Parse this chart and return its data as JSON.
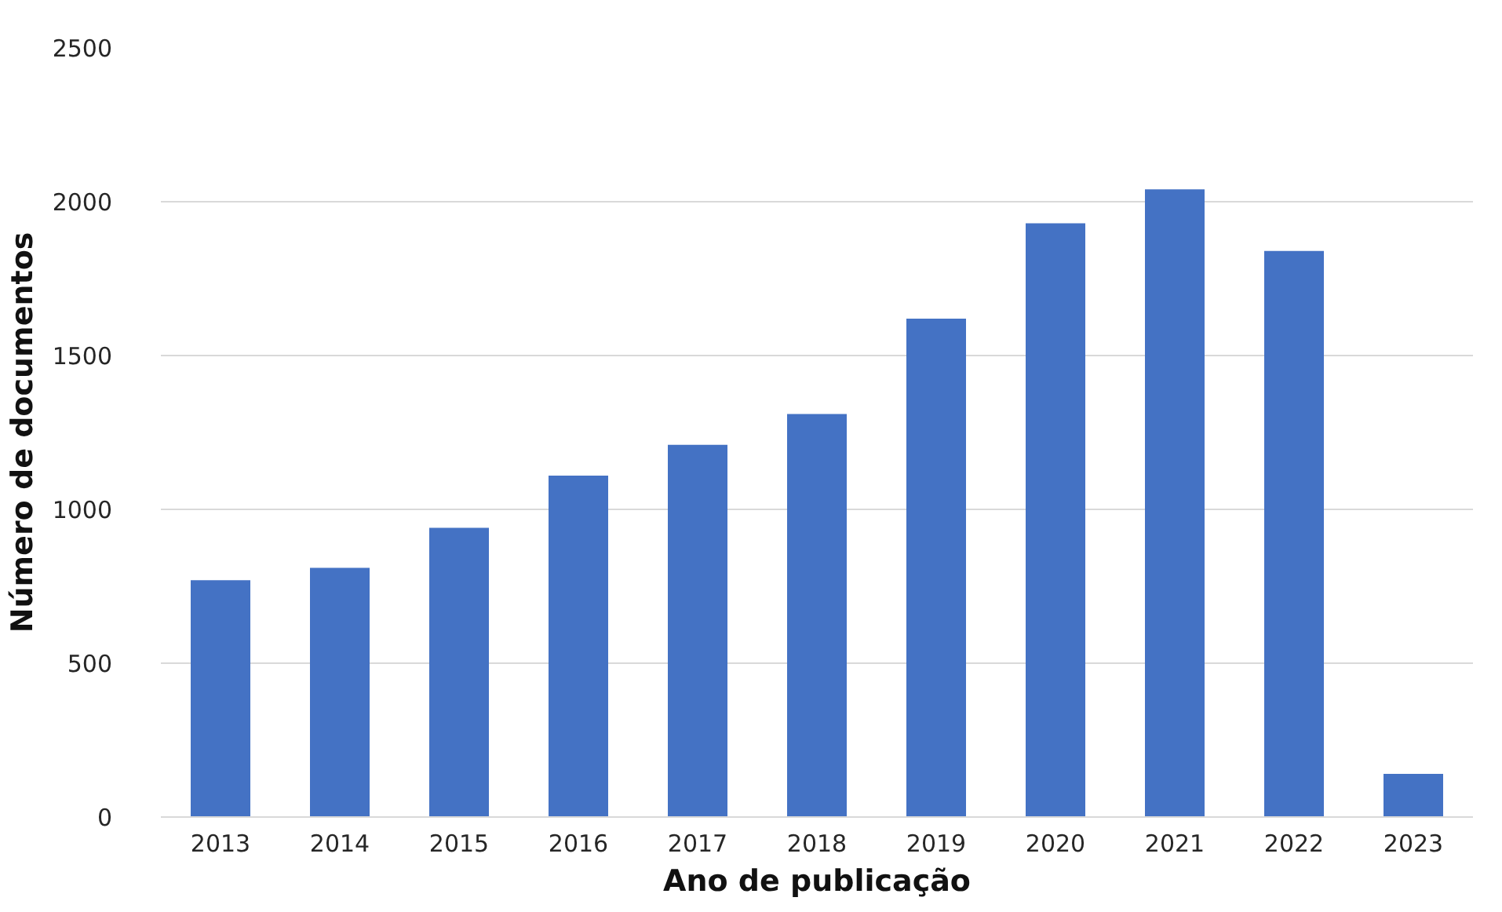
{
  "chart_data": {
    "type": "bar",
    "xlabel": "Ano de publicação",
    "ylabel": "Número de documentos",
    "categories": [
      "2013",
      "2014",
      "2015",
      "2016",
      "2017",
      "2018",
      "2019",
      "2020",
      "2021",
      "2022",
      "2023"
    ],
    "values": [
      770,
      810,
      940,
      1110,
      1210,
      1310,
      1620,
      1930,
      2040,
      1840,
      140
    ],
    "color": "#4472c4",
    "ylim": [
      0,
      2500
    ],
    "yticks": [
      0,
      500,
      1000,
      1500,
      2000,
      2500
    ],
    "grid": "y"
  }
}
